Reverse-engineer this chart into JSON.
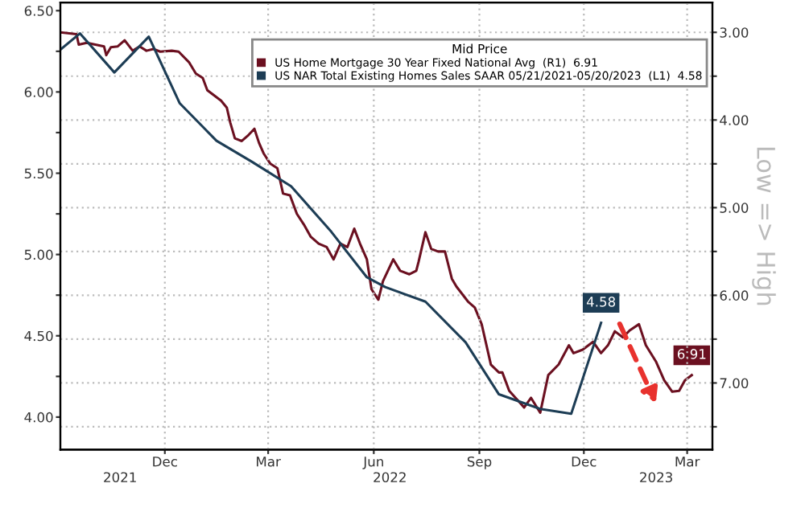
{
  "chart_data": {
    "type": "line",
    "legend_title": "Mid Price",
    "y2label": "Low => High",
    "legend": "top right",
    "grid": true,
    "xlim": [
      "2021-09-01",
      "2023-03-23"
    ],
    "xticks": [
      {
        "value": "2021-12-01",
        "label": "Dec"
      },
      {
        "value": "2022-03-01",
        "label": "Mar"
      },
      {
        "value": "2022-06-01",
        "label": "Jun"
      },
      {
        "value": "2022-09-01",
        "label": "Sep"
      },
      {
        "value": "2022-12-01",
        "label": "Dec"
      },
      {
        "value": "2023-03-01",
        "label": "Mar"
      }
    ],
    "x2lim": [
      "2021-09-01",
      "2023-03-23"
    ],
    "x2ticks": [
      {
        "value": "2021-10-23",
        "label": "2021"
      },
      {
        "value": "2022-06-15",
        "label": "2022"
      },
      {
        "value": "2023-02-02",
        "label": "2023"
      }
    ],
    "ylim": [
      3.8,
      6.55
    ],
    "yticks": [
      {
        "value": 4.0,
        "label": "4.00"
      },
      {
        "value": 4.25,
        "label": null
      },
      {
        "value": 4.5,
        "label": "4.50"
      },
      {
        "value": 4.75,
        "label": null
      },
      {
        "value": 5.0,
        "label": "5.00"
      },
      {
        "value": 5.25,
        "label": null
      },
      {
        "value": 5.5,
        "label": "5.50"
      },
      {
        "value": 5.75,
        "label": null
      },
      {
        "value": 6.0,
        "label": "6.00"
      },
      {
        "value": 6.25,
        "label": null
      },
      {
        "value": 6.5,
        "label": "6.50"
      }
    ],
    "y2lim": [
      7.76,
      2.66
    ],
    "y2ticks": [
      {
        "value": 3.0,
        "label": "3.00"
      },
      {
        "value": 3.5,
        "label": null
      },
      {
        "value": 4.0,
        "label": "4.00"
      },
      {
        "value": 4.5,
        "label": null
      },
      {
        "value": 5.0,
        "label": "5.00"
      },
      {
        "value": 5.5,
        "label": null
      },
      {
        "value": 6.0,
        "label": "6.00"
      },
      {
        "value": 6.5,
        "label": null
      },
      {
        "value": 7.0,
        "label": "7.00"
      },
      {
        "value": 7.5,
        "label": null
      }
    ],
    "series": [
      {
        "name": "US Home Mortgage 30 Year Fixed National Avg  (R1)  6.91",
        "color": "#6b1020",
        "axis": "y2",
        "x": [
          "2021-09-01",
          "2021-09-15",
          "2021-09-17",
          "2021-09-24",
          "2021-10-09",
          "2021-10-11",
          "2021-10-15",
          "2021-10-21",
          "2021-10-27",
          "2021-11-03",
          "2021-11-09",
          "2021-11-15",
          "2021-11-21",
          "2021-11-27",
          "2021-12-07",
          "2021-12-13",
          "2021-12-22",
          "2021-12-28",
          "2022-01-03",
          "2022-01-07",
          "2022-01-13",
          "2022-01-19",
          "2022-01-24",
          "2022-01-27",
          "2022-01-31",
          "2022-02-06",
          "2022-02-12",
          "2022-02-17",
          "2022-02-21",
          "2022-02-25",
          "2022-03-03",
          "2022-03-09",
          "2022-03-14",
          "2022-03-20",
          "2022-03-26",
          "2022-04-01",
          "2022-04-07",
          "2022-04-14",
          "2022-04-21",
          "2022-04-27",
          "2022-05-03",
          "2022-05-09",
          "2022-05-15",
          "2022-05-20",
          "2022-05-26",
          "2022-05-30",
          "2022-06-05",
          "2022-06-09",
          "2022-06-18",
          "2022-06-24",
          "2022-07-02",
          "2022-07-08",
          "2022-07-10",
          "2022-07-16",
          "2022-07-21",
          "2022-07-27",
          "2022-08-02",
          "2022-08-08",
          "2022-08-12",
          "2022-08-22",
          "2022-08-28",
          "2022-09-03",
          "2022-09-11",
          "2022-09-18",
          "2022-09-21",
          "2022-09-27",
          "2022-10-06",
          "2022-10-10",
          "2022-10-16",
          "2022-10-24",
          "2022-10-31",
          "2022-11-09",
          "2022-11-18",
          "2022-11-22",
          "2022-11-30",
          "2022-12-09",
          "2022-12-16",
          "2022-12-22",
          "2022-12-28",
          "2023-01-04",
          "2023-01-10",
          "2023-01-18",
          "2023-01-24",
          "2023-02-02",
          "2023-02-09",
          "2023-02-16",
          "2023-02-22",
          "2023-02-27",
          "2023-03-05"
        ],
        "values": [
          3.0,
          3.02,
          3.14,
          3.12,
          3.16,
          3.26,
          3.17,
          3.16,
          3.09,
          3.21,
          3.16,
          3.21,
          3.19,
          3.22,
          3.21,
          3.22,
          3.34,
          3.47,
          3.52,
          3.66,
          3.72,
          3.78,
          3.86,
          4.03,
          4.21,
          4.24,
          4.17,
          4.1,
          4.26,
          4.38,
          4.5,
          4.55,
          4.84,
          4.86,
          5.07,
          5.19,
          5.33,
          5.41,
          5.45,
          5.59,
          5.41,
          5.45,
          5.24,
          5.41,
          5.59,
          5.93,
          6.05,
          5.84,
          5.59,
          5.72,
          5.76,
          5.72,
          5.62,
          5.28,
          5.47,
          5.5,
          5.5,
          5.81,
          5.9,
          6.07,
          6.14,
          6.33,
          6.79,
          6.88,
          6.88,
          7.09,
          7.22,
          7.28,
          7.17,
          7.34,
          6.91,
          6.79,
          6.57,
          6.66,
          6.62,
          6.53,
          6.66,
          6.57,
          6.41,
          6.48,
          6.4,
          6.33,
          6.57,
          6.76,
          6.97,
          7.1,
          7.09,
          6.97,
          6.91
        ],
        "value_labels": [
          null,
          null,
          null,
          null,
          null,
          null,
          null,
          null,
          null,
          null,
          null,
          null,
          null,
          null,
          null,
          null,
          null,
          null,
          null,
          null,
          null,
          null,
          null,
          null,
          null,
          null,
          null,
          null,
          null,
          null,
          null,
          null,
          null,
          null,
          null,
          null,
          null,
          null,
          null,
          null,
          null,
          null,
          null,
          null,
          null,
          null,
          null,
          null,
          null,
          null,
          null,
          null,
          null,
          null,
          null,
          null,
          null,
          null,
          null,
          null,
          null,
          null,
          null,
          null,
          null,
          null,
          null,
          null,
          null,
          null,
          null,
          null,
          null,
          null,
          null,
          null,
          null,
          null,
          null,
          null,
          null,
          null,
          null,
          null,
          null,
          null,
          null,
          null,
          "6.91"
        ]
      },
      {
        "name": "US NAR Total Existing Homes Sales SAAR 05/21/2021-05/20/2023  (L1)  4.58",
        "color": "#1d3d55",
        "x": [
          "2021-09-01",
          "2021-09-18",
          "2021-10-18",
          "2021-11-17",
          "2021-12-14",
          "2022-01-15",
          "2022-02-15",
          "2022-03-21",
          "2022-04-25",
          "2022-05-26",
          "2022-06-11",
          "2022-07-16",
          "2022-08-20",
          "2022-09-18",
          "2022-10-24",
          "2022-11-20",
          "2022-12-16"
        ],
        "values": [
          6.26,
          6.36,
          6.12,
          6.34,
          5.93,
          5.7,
          5.57,
          5.42,
          5.14,
          4.86,
          4.8,
          4.71,
          4.46,
          4.14,
          4.05,
          4.02,
          4.58
        ],
        "value_labels": [
          null,
          null,
          null,
          null,
          null,
          null,
          null,
          null,
          null,
          null,
          null,
          null,
          null,
          null,
          null,
          null,
          "4.58"
        ]
      }
    ]
  }
}
